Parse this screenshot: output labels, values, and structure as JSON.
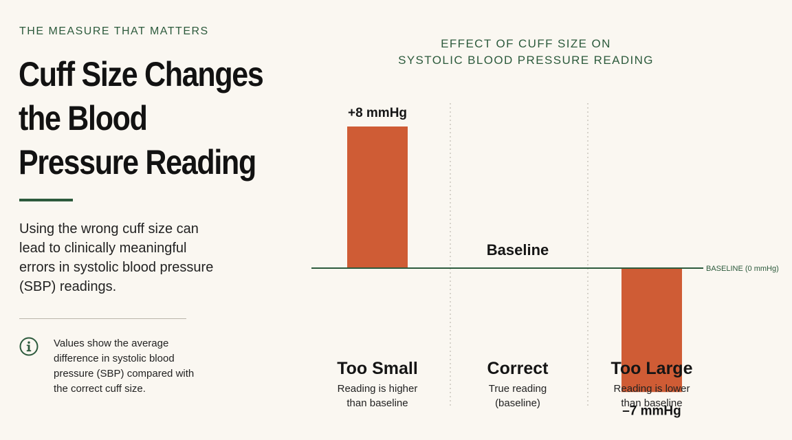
{
  "eyebrow": "THE MEASURE THAT MATTERS",
  "headline": "Cuff Size Changes the Blood Pressure Reading",
  "lead": "Using the wrong cuff size can lead to clinically meaningful errors in systolic blood pressure (SBP) readings.",
  "note": "Values show the average difference in systolic blood pressure (SBP) compared with the correct cuff size.",
  "info_icon": "info-circle-icon",
  "colors": {
    "accent": "#2c5a3c",
    "bar": "#cf5c35",
    "background": "#faf7f1"
  },
  "chart_data": {
    "type": "bar",
    "title_lines": [
      "EFFECT OF CUFF SIZE ON",
      "SYSTOLIC BLOOD PRESSURE READING"
    ],
    "categories": [
      "Too Small",
      "Correct",
      "Too Large"
    ],
    "descriptions": [
      [
        "Reading is higher",
        "than baseline"
      ],
      [
        "True reading",
        "(baseline)"
      ],
      [
        "Reading is lower",
        "than baseline"
      ]
    ],
    "values": [
      8,
      0,
      -7
    ],
    "value_labels": [
      "+8 mmHg",
      "Baseline",
      "–7 mmHg"
    ],
    "baseline_label": "BASELINE (0 mmHg)",
    "unit": "mmHg",
    "ylim": [
      -7,
      8
    ],
    "grid": false,
    "legend": "none"
  }
}
